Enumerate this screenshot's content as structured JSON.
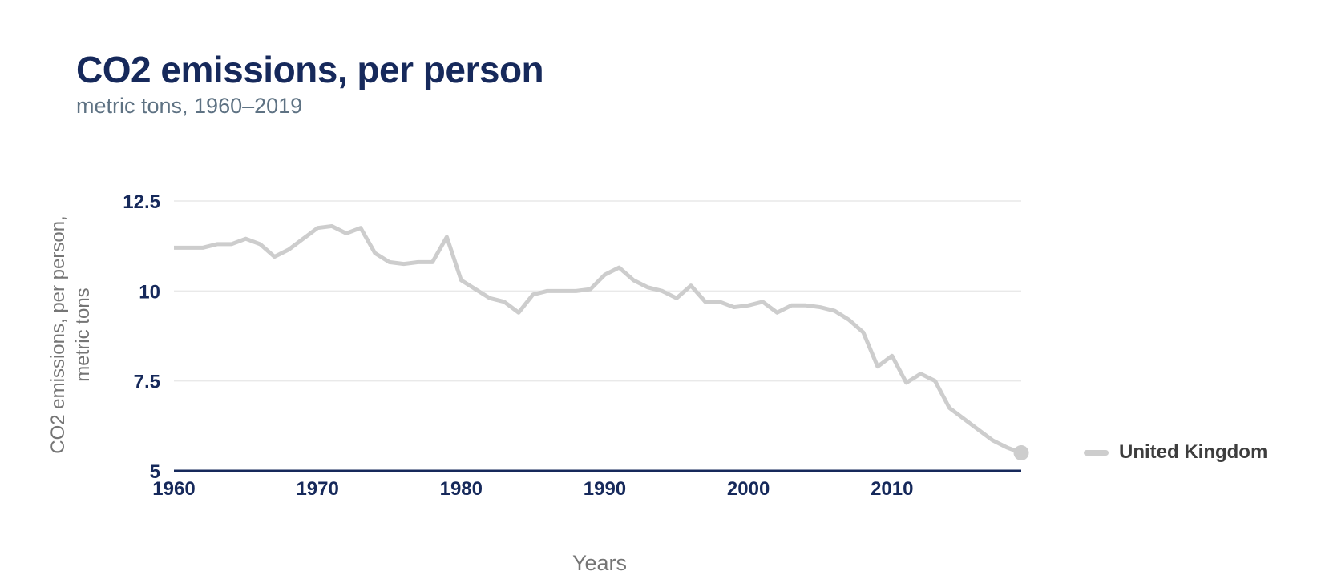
{
  "header": {
    "title": "CO2 emissions, per person",
    "subtitle": "metric tons, 1960–2019"
  },
  "colors": {
    "navy": "#16295b",
    "subtitle_gray": "#5e7283",
    "axis_title_gray": "#757575",
    "line_gray": "#cdcdcd",
    "grid_gray": "#e9e9e9",
    "legend_text": "#3d3d3d",
    "background": "#ffffff"
  },
  "chart_data": {
    "type": "line",
    "title": "CO2 emissions, per person",
    "subtitle": "metric tons, 1960–2019",
    "xlabel": "Years",
    "ylabel": "CO2 emissions, per person, metric tons",
    "ylabel_lines": [
      "CO2 emissions, per person,",
      "metric tons"
    ],
    "xlim": [
      1960,
      2019
    ],
    "ylim": [
      5,
      12.5
    ],
    "x_ticks": [
      1960,
      1970,
      1980,
      1990,
      2000,
      2010
    ],
    "y_ticks": [
      12.5,
      10,
      7.5,
      5
    ],
    "grid": "horizontal",
    "legend_position": "right-of-line-end",
    "end_marker": true,
    "x": [
      1960,
      1961,
      1962,
      1963,
      1964,
      1965,
      1966,
      1967,
      1968,
      1969,
      1970,
      1971,
      1972,
      1973,
      1974,
      1975,
      1976,
      1977,
      1978,
      1979,
      1980,
      1981,
      1982,
      1983,
      1984,
      1985,
      1986,
      1987,
      1988,
      1989,
      1990,
      1991,
      1992,
      1993,
      1994,
      1995,
      1996,
      1997,
      1998,
      1999,
      2000,
      2001,
      2002,
      2003,
      2004,
      2005,
      2006,
      2007,
      2008,
      2009,
      2010,
      2011,
      2012,
      2013,
      2014,
      2015,
      2016,
      2017,
      2018,
      2019
    ],
    "series": [
      {
        "name": "United Kingdom",
        "color": "#cdcdcd",
        "values": [
          11.2,
          11.2,
          11.2,
          11.3,
          11.3,
          11.45,
          11.3,
          10.95,
          11.15,
          11.45,
          11.75,
          11.8,
          11.6,
          11.75,
          11.05,
          10.8,
          10.75,
          10.8,
          10.8,
          11.5,
          10.3,
          10.05,
          9.8,
          9.7,
          9.4,
          9.9,
          10.0,
          10.0,
          10.0,
          10.05,
          10.45,
          10.65,
          10.3,
          10.1,
          10.0,
          9.8,
          10.15,
          9.7,
          9.7,
          9.55,
          9.6,
          9.7,
          9.4,
          9.6,
          9.6,
          9.55,
          9.45,
          9.2,
          8.85,
          7.9,
          8.2,
          7.45,
          7.7,
          7.5,
          6.75,
          6.45,
          6.15,
          5.85,
          5.65,
          5.5
        ]
      }
    ]
  }
}
